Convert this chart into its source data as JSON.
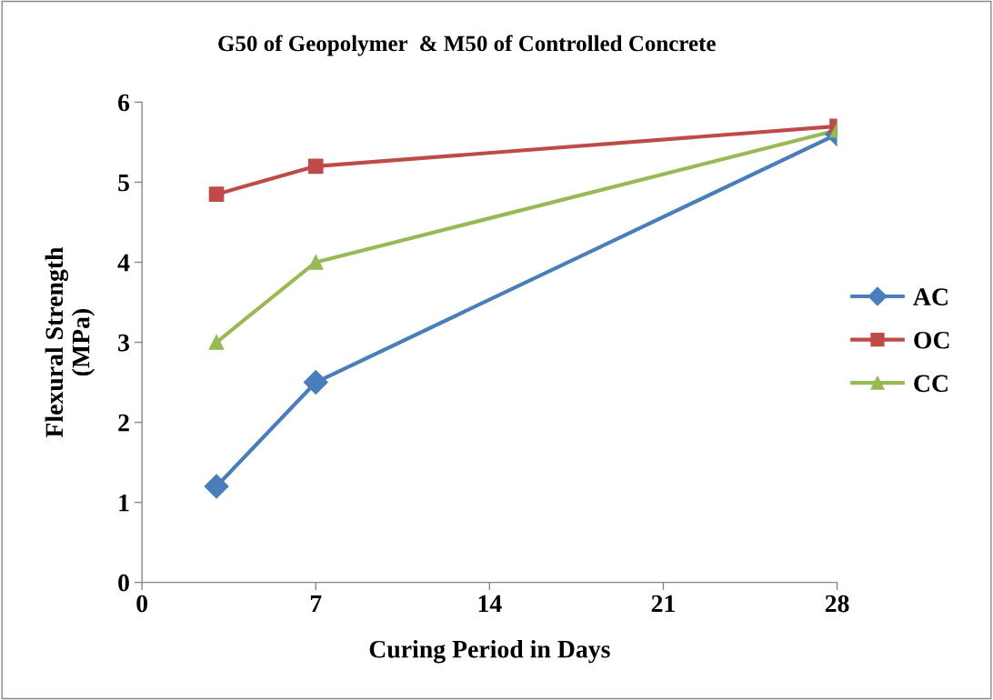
{
  "chart_data": {
    "type": "line",
    "title": "G50 of Geopolymer  & M50 of Controlled Concrete",
    "xlabel": "Curing Period in Days",
    "ylabel": "Flexural Strength\n(MPa)",
    "x": [
      3,
      7,
      28
    ],
    "series": [
      {
        "name": "AC",
        "color": "#4a7ebb",
        "marker": "diamond",
        "values": [
          1.2,
          2.5,
          5.6
        ]
      },
      {
        "name": "OC",
        "color": "#be4b48",
        "marker": "square",
        "values": [
          4.85,
          5.2,
          5.7
        ]
      },
      {
        "name": "CC",
        "color": "#98b954",
        "marker": "triangle",
        "values": [
          3.0,
          4.0,
          5.65
        ]
      }
    ],
    "xlim": [
      0,
      28
    ],
    "xticks": [
      0,
      7,
      14,
      21,
      28
    ],
    "ylim": [
      0,
      6
    ],
    "yticks": [
      0,
      1,
      2,
      3,
      4,
      5,
      6
    ],
    "grid": false,
    "legend": "right",
    "line_style": "solid"
  }
}
